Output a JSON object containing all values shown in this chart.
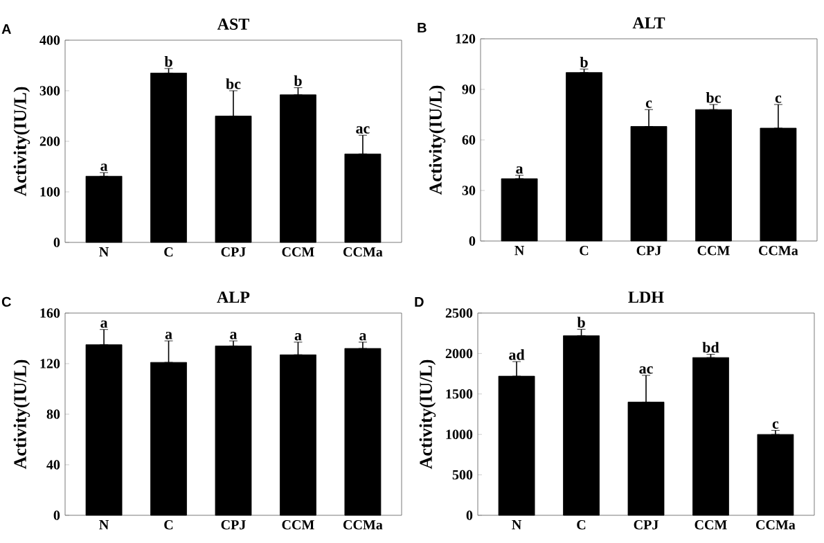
{
  "chart_data": [
    {
      "type": "bar",
      "title": "AST",
      "ylabel": "Activity(IU/L)",
      "categories": [
        "N",
        "C",
        "CPJ",
        "CCM",
        "CCMa"
      ],
      "values": [
        131,
        335,
        250,
        292,
        175
      ],
      "errors": [
        [
          131,
          138
        ],
        [
          335,
          344
        ],
        [
          250,
          300
        ],
        [
          292,
          306
        ],
        [
          175,
          212
        ]
      ],
      "color": "#000000",
      "ylim": [
        0,
        400
      ],
      "yticks": [
        0,
        100,
        200,
        300,
        400
      ],
      "grid": false,
      "annotations": [
        "A",
        {
          "text": "a",
          "x": "N",
          "y": 138
        },
        {
          "text": "b",
          "x": "C",
          "y": 344
        },
        {
          "text": "bc",
          "x": "CPJ",
          "y": 300
        },
        {
          "text": "b",
          "x": "CCM",
          "y": 306
        },
        {
          "text": "ac",
          "x": "CCMa",
          "y": 212
        }
      ]
    },
    {
      "type": "bar",
      "title": "ALT",
      "ylabel": "Activity(IU/L)",
      "categories": [
        "N",
        "C",
        "CPJ",
        "CCM",
        "CCMa"
      ],
      "values": [
        37,
        100,
        68,
        78,
        67
      ],
      "errors": [
        [
          37,
          39
        ],
        [
          100,
          102
        ],
        [
          68,
          78
        ],
        [
          78,
          81
        ],
        [
          67,
          81
        ]
      ],
      "color": "#000000",
      "ylim": [
        0,
        120
      ],
      "yticks": [
        0,
        30,
        60,
        90,
        120
      ],
      "grid": false,
      "annotations": [
        "B",
        {
          "text": "a",
          "x": "N",
          "y": 39
        },
        {
          "text": "b",
          "x": "C",
          "y": 102
        },
        {
          "text": "c",
          "x": "CPJ",
          "y": 78
        },
        {
          "text": "bc",
          "x": "CCM",
          "y": 81
        },
        {
          "text": "c",
          "x": "CCMa",
          "y": 81
        }
      ]
    },
    {
      "type": "bar",
      "title": "ALP",
      "ylabel": "Activity(IU/L)",
      "categories": [
        "N",
        "C",
        "CPJ",
        "CCM",
        "CCMa"
      ],
      "values": [
        135,
        121,
        134,
        127,
        132
      ],
      "errors": [
        [
          135,
          147
        ],
        [
          121,
          138
        ],
        [
          134,
          138
        ],
        [
          127,
          137
        ],
        [
          132,
          137
        ]
      ],
      "color": "#000000",
      "ylim": [
        0,
        160
      ],
      "yticks": [
        0,
        40,
        80,
        120,
        160
      ],
      "grid": false,
      "annotations": [
        "C",
        {
          "text": "a",
          "x": "N",
          "y": 147
        },
        {
          "text": "a",
          "x": "C",
          "y": 138
        },
        {
          "text": "a",
          "x": "CPJ",
          "y": 138
        },
        {
          "text": "a",
          "x": "CCM",
          "y": 137
        },
        {
          "text": "a",
          "x": "CCMa",
          "y": 137
        }
      ]
    },
    {
      "type": "bar",
      "title": "LDH",
      "ylabel": "Activity(IU/L)",
      "categories": [
        "N",
        "C",
        "CPJ",
        "CCM",
        "CCMa"
      ],
      "values": [
        1720,
        2220,
        1400,
        1950,
        1000
      ],
      "errors": [
        [
          1720,
          1900
        ],
        [
          2220,
          2300
        ],
        [
          1400,
          1730
        ],
        [
          1950,
          1990
        ],
        [
          1000,
          1050
        ]
      ],
      "color": "#000000",
      "ylim": [
        0,
        2500
      ],
      "yticks": [
        0,
        500,
        1000,
        1500,
        2000,
        2500
      ],
      "grid": false,
      "annotations": [
        "D",
        {
          "text": "ad",
          "x": "N",
          "y": 1900
        },
        {
          "text": "b",
          "x": "C",
          "y": 2300
        },
        {
          "text": "ac",
          "x": "CPJ",
          "y": 1730
        },
        {
          "text": "bd",
          "x": "CCM",
          "y": 1990
        },
        {
          "text": "c",
          "x": "CCMa",
          "y": 1050
        }
      ]
    }
  ]
}
